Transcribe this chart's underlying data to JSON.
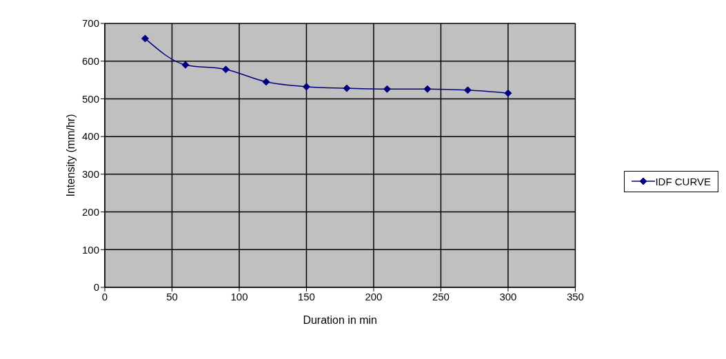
{
  "chart_data": {
    "type": "line",
    "xlabel": "Duration  in min",
    "ylabel": "Intensity (mm/hr)",
    "x": [
      30,
      60,
      90,
      120,
      150,
      180,
      210,
      240,
      270,
      300
    ],
    "series": [
      {
        "name": "IDF CURVE",
        "color": "#000080",
        "values": [
          660,
          590,
          578,
          545,
          532,
          528,
          526,
          526,
          523,
          515
        ]
      }
    ],
    "xlim": [
      0,
      350
    ],
    "xticks": [
      0,
      50,
      100,
      150,
      200,
      250,
      300,
      350
    ],
    "ylim": [
      0,
      700
    ],
    "yticks": [
      0,
      100,
      200,
      300,
      400,
      500,
      600,
      700
    ],
    "grid": true,
    "legend": "right",
    "marker": "diamond",
    "line_style": "solid"
  }
}
